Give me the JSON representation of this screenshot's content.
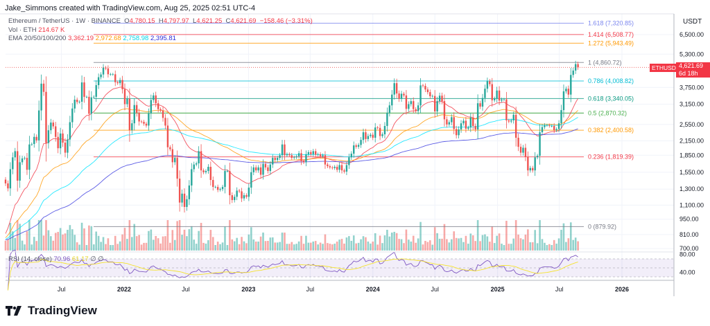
{
  "credit": "Jake_Simmons created with TradingView.com, Aug 25, 2025 02:51 UTC-4",
  "legend": {
    "symbol": "Ethereum / TetherUS · 1W · BINANCE",
    "open_label": "O",
    "open": "4,780.15",
    "high_label": "H",
    "high": "4,797.97",
    "low_label": "L",
    "low": "4,621.25",
    "close_label": "C",
    "close": "4,621.69",
    "change": "−158.46 (−3.31%)",
    "vol_label": "Vol · ETH",
    "vol": "214.67 K",
    "ema_label": "EMA 20/50/100/200",
    "ema20": "3,362.19",
    "ema50": "2,972.68",
    "ema100": "2,758.98",
    "ema200": "2,395.81"
  },
  "rsi_legend": {
    "label": "RSI (14, close)",
    "rsi": "70.96",
    "ma": "61.17",
    "icon1": "∅",
    "icon2": "∅"
  },
  "axis": {
    "currency": "USDT",
    "price_ticks": [
      "6,500.00",
      "5,300.00",
      "3,750.00",
      "3,150.00",
      "2,550.00",
      "2,150.00",
      "1,850.00",
      "1,550.00",
      "1,300.00",
      "1,100.00",
      "950.00",
      "810.00",
      "700.00"
    ],
    "rsi_ticks": [
      "80.00",
      "40.00"
    ],
    "time_ticks": [
      {
        "label": "Jul",
        "date": "2021-07-01"
      },
      {
        "label": "2022",
        "date": "2022-01-01"
      },
      {
        "label": "Jul",
        "date": "2022-07-01"
      },
      {
        "label": "2023",
        "date": "2023-01-01"
      },
      {
        "label": "Jul",
        "date": "2023-07-01"
      },
      {
        "label": "2024",
        "date": "2024-01-01"
      },
      {
        "label": "Jul",
        "date": "2024-07-01"
      },
      {
        "label": "2025",
        "date": "2025-01-01"
      },
      {
        "label": "Jul",
        "date": "2025-07-01"
      },
      {
        "label": "2026",
        "date": "2026-01-01"
      }
    ]
  },
  "price_tag": {
    "symbol": "ETHUSDT",
    "price": "4,621.69",
    "countdown": "6d 18h"
  },
  "fib_levels": [
    {
      "label": "1.618 (7,320.85)",
      "value": 7320.85,
      "color": "#7b86ee"
    },
    {
      "label": "1.414 (6,508.77)",
      "value": 6508.77,
      "color": "#f23645"
    },
    {
      "label": "1.272 (5,943.49)",
      "value": 5943.49,
      "color": "#ff9800"
    },
    {
      "label": "1 (4,860.72)",
      "value": 4860.72,
      "color": "#787b86"
    },
    {
      "label": "0.786 (4,008.82)",
      "value": 4008.82,
      "color": "#00bcd4"
    },
    {
      "label": "0.618 (3,340.05)",
      "value": 3340.05,
      "color": "#089981"
    },
    {
      "label": "0.5 (2,870.32)",
      "value": 2870.32,
      "color": "#4caf50"
    },
    {
      "label": "0.382 (2,400.58)",
      "value": 2400.58,
      "color": "#ff9800"
    },
    {
      "label": "0.236 (1,819.39)",
      "value": 1819.39,
      "color": "#f23645"
    },
    {
      "label": "0 (879.92)",
      "value": 879.92,
      "color": "#787b86"
    }
  ],
  "colors": {
    "up": "#26a69a",
    "down": "#ef5350",
    "ema20": "#f23645",
    "ema50": "#ff9800",
    "ema100": "#00e5ff",
    "ema200": "#3f3fe0",
    "rsi": "#7e57c2",
    "rsi_ma": "#f5e22b"
  },
  "logo": {
    "text": "TradingView"
  },
  "chart_data": {
    "type": "candlestick",
    "interval": "1W",
    "scale": "log",
    "first_week": "2021-01-18",
    "closes": [
      1380,
      1310,
      1600,
      1810,
      1930,
      1420,
      1720,
      1790,
      1800,
      1590,
      2070,
      2080,
      2240,
      2160,
      2950,
      3900,
      3580,
      2100,
      2400,
      2600,
      2500,
      2240,
      1990,
      2320,
      2110,
      1900,
      2180,
      2610,
      3010,
      3300,
      3220,
      3230,
      3950,
      3400,
      3400,
      2850,
      3380,
      3400,
      3840,
      4170,
      4290,
      4610,
      4570,
      4300,
      4300,
      4300,
      3960,
      3920,
      4050,
      3680,
      3150,
      3330,
      2400,
      2580,
      3120,
      2880,
      2630,
      2620,
      2570,
      2520,
      2860,
      3290,
      3450,
      3180,
      2990,
      2950,
      2730,
      2520,
      2010,
      1970,
      1720,
      1800,
      1450,
      1130,
      1240,
      1080,
      1170,
      1350,
      1600,
      1680,
      1700,
      1930,
      1580,
      1550,
      1570,
      1640,
      1430,
      1330,
      1330,
      1290,
      1300,
      1330,
      1570,
      1570,
      1220,
      1160,
      1200,
      1280,
      1270,
      1180,
      1220,
      1200,
      1320,
      1550,
      1630,
      1580,
      1630,
      1510,
      1690,
      1630,
      1570,
      1680,
      1800,
      1760,
      1800,
      1850,
      2070,
      1850,
      1870,
      1850,
      1800,
      1810,
      1830,
      1890,
      1740,
      1720,
      1870,
      1910,
      1870,
      1930,
      1860,
      1870,
      1830,
      1850,
      1680,
      1650,
      1630,
      1620,
      1640,
      1590,
      1670,
      1580,
      1560,
      1670,
      1810,
      1880,
      2050,
      2020,
      2060,
      2170,
      2350,
      2190,
      2260,
      2290,
      2220,
      2470,
      2460,
      2260,
      2300,
      2510,
      2880,
      3110,
      3480,
      3920,
      3520,
      3330,
      3510,
      3450,
      3000,
      3150,
      3250,
      2990,
      2930,
      3110,
      3830,
      3810,
      3670,
      3570,
      3420,
      3430,
      2920,
      3250,
      3440,
      3250,
      2690,
      2550,
      2610,
      2750,
      2430,
      2280,
      2420,
      2580,
      2650,
      2440,
      2470,
      2740,
      2510,
      2420,
      3180,
      3070,
      3360,
      3700,
      4000,
      3880,
      3280,
      3340,
      3630,
      3270,
      3310,
      3310,
      2660,
      2630,
      2660,
      2820,
      2220,
      2020,
      1900,
      2000,
      1820,
      1580,
      1620,
      1580,
      1810,
      1840,
      2350,
      2480,
      2530,
      2530,
      2510,
      2510,
      2400,
      2430,
      2580,
      2960,
      3600,
      3700,
      3480,
      4270,
      4470,
      4780,
      4621.69
    ]
  }
}
